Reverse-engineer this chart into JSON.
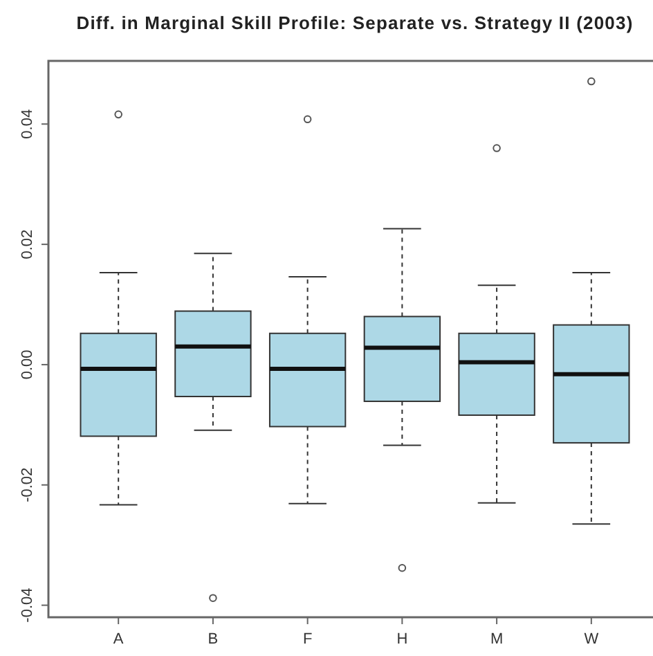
{
  "chart_data": {
    "type": "box",
    "title": "Diff. in Marginal Skill Profile: Separate vs. Strategy II (2003)",
    "categories": [
      "A",
      "B",
      "F",
      "H",
      "M",
      "W"
    ],
    "boxes": [
      {
        "low": -0.0233,
        "q1": -0.0119,
        "median": -0.0007,
        "q3": 0.0052,
        "high": 0.0153,
        "outliers": [
          0.0416
        ]
      },
      {
        "low": -0.0109,
        "q1": -0.0053,
        "median": 0.003,
        "q3": 0.0089,
        "high": 0.0185,
        "outliers": [
          -0.0388
        ]
      },
      {
        "low": -0.0231,
        "q1": -0.0103,
        "median": -0.0007,
        "q3": 0.0052,
        "high": 0.0146,
        "outliers": [
          0.0408
        ]
      },
      {
        "low": -0.0134,
        "q1": -0.0061,
        "median": 0.0028,
        "q3": 0.008,
        "high": 0.0226,
        "outliers": [
          -0.0338
        ]
      },
      {
        "low": -0.023,
        "q1": -0.0084,
        "median": 0.0004,
        "q3": 0.0052,
        "high": 0.0132,
        "outliers": [
          0.036
        ]
      },
      {
        "low": -0.0265,
        "q1": -0.013,
        "median": -0.0016,
        "q3": 0.0066,
        "high": 0.0153,
        "outliers": [
          0.0471
        ]
      }
    ],
    "color": "#add8e6",
    "line_style": "dashed",
    "ylim": [
      -0.042,
      0.0505
    ],
    "yticks": [
      {
        "value": -0.04,
        "label": "-0.04"
      },
      {
        "value": -0.02,
        "label": "-0.02"
      },
      {
        "value": 0,
        "label": "0.00"
      },
      {
        "value": 0.02,
        "label": "0.02"
      },
      {
        "value": 0.04,
        "label": "0.04"
      }
    ]
  }
}
